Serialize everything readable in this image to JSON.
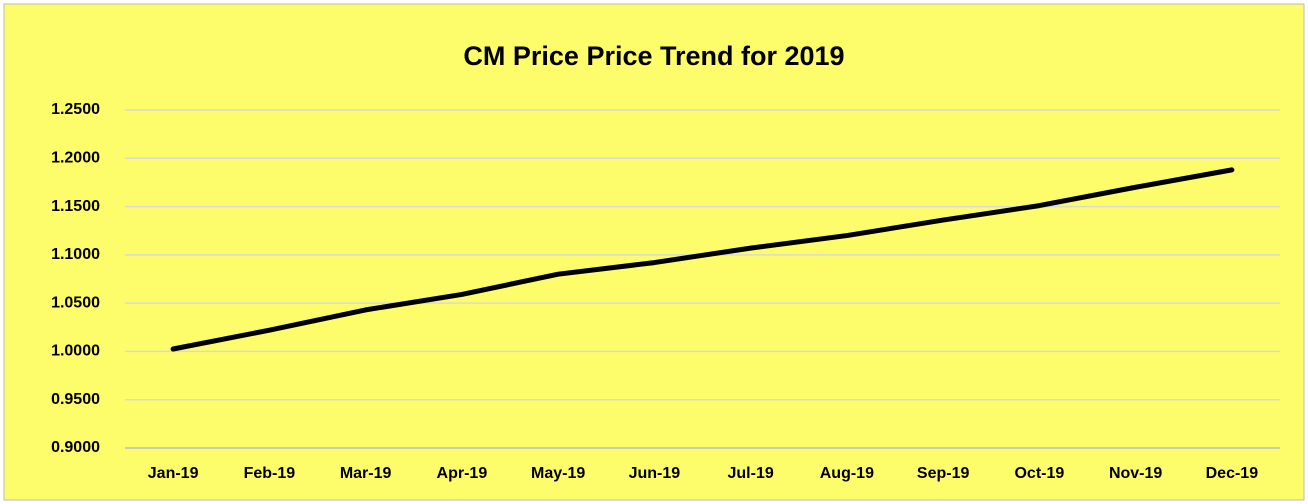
{
  "chart_data": {
    "type": "line",
    "title": "CM Price Price Trend for 2019",
    "categories": [
      "Jan-19",
      "Feb-19",
      "Mar-19",
      "Apr-19",
      "May-19",
      "Jun-19",
      "Jul-19",
      "Aug-19",
      "Sep-19",
      "Oct-19",
      "Nov-19",
      "Dec-19"
    ],
    "series": [
      {
        "name": "CM Price",
        "color": "#000000",
        "values": [
          1.0025,
          1.022,
          1.043,
          1.059,
          1.08,
          1.092,
          1.107,
          1.12,
          1.136,
          1.151,
          1.17,
          1.188
        ]
      }
    ],
    "ylim": [
      0.9,
      1.25
    ],
    "yticks": [
      {
        "value": 0.9,
        "label": "0.9000"
      },
      {
        "value": 0.95,
        "label": "0.9500"
      },
      {
        "value": 1.0,
        "label": "1.0000"
      },
      {
        "value": 1.05,
        "label": "1.0500"
      },
      {
        "value": 1.1,
        "label": "1.1000"
      },
      {
        "value": 1.15,
        "label": "1.1500"
      },
      {
        "value": 1.2,
        "label": "1.2000"
      },
      {
        "value": 1.25,
        "label": "1.2500"
      }
    ],
    "grid": true,
    "background": "#fdfd6c"
  }
}
